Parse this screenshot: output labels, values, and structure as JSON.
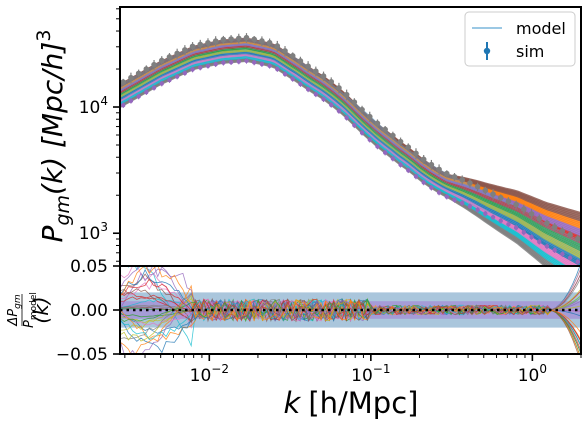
{
  "chart_data": [
    {
      "type": "line",
      "panel": "top",
      "title": "",
      "ylabel_main": "P",
      "ylabel_sub": "gm",
      "ylabel_rest": "(k) [Mpc/h]",
      "ylabel_sup": "3",
      "xscale": "log",
      "yscale": "log",
      "xlim": [
        0.0028,
        2.0
      ],
      "ylim": [
        550,
        62000
      ],
      "yticks": [
        {
          "value": 1000,
          "base": "10",
          "exp": "3"
        },
        {
          "value": 10000,
          "base": "10",
          "exp": "4"
        }
      ],
      "legend": {
        "placement": "top-right",
        "entries": [
          {
            "label": "model",
            "kind": "line",
            "color": "#5fa8d3"
          },
          {
            "label": "sim",
            "kind": "errorbar",
            "color": "#1f77b4"
          }
        ]
      },
      "curve_shape": {
        "k": [
          0.0028,
          0.005,
          0.008,
          0.012,
          0.017,
          0.025,
          0.035,
          0.05,
          0.07,
          0.1,
          0.15,
          0.2,
          0.3,
          0.5,
          0.8,
          1.2,
          2.0
        ],
        "pk": [
          12500,
          19000,
          25000,
          28000,
          29000,
          26000,
          20000,
          14500,
          10300,
          7000,
          4300,
          3300,
          2450,
          1800,
          1380,
          1000,
          720
        ]
      },
      "series_note": "many realizations of sim (points with error bars) and model (thin lines)",
      "series_colors": [
        "#7f7f7f",
        "#17becf",
        "#e377c2",
        "#1f77b4",
        "#bcbd22",
        "#2ca02c",
        "#d62728",
        "#9467bd",
        "#ff7f0e",
        "#8c564b"
      ]
    },
    {
      "type": "line",
      "panel": "bottom",
      "xlabel_main": "k",
      "xlabel_rest": "[h/Mpc]",
      "ylabel_num_main": "ΔP",
      "ylabel_num_sub": "gm",
      "ylabel_den_main": "P",
      "ylabel_den_sub": "model",
      "ylabel_tail": "(k)",
      "xscale": "log",
      "xlim": [
        0.0028,
        2.0
      ],
      "ylim": [
        -0.05,
        0.05
      ],
      "yticks": [
        {
          "value": 0.05,
          "label": "0.05"
        },
        {
          "value": 0.0,
          "label": "0.00"
        },
        {
          "value": -0.05,
          "label": "−0.05"
        }
      ],
      "xticks": [
        {
          "value": 0.01,
          "base": "10",
          "exp": "−2"
        },
        {
          "value": 0.1,
          "base": "10",
          "exp": "−1"
        },
        {
          "value": 1,
          "base": "10",
          "exp": "0"
        }
      ],
      "bands": [
        {
          "ymin": -0.02,
          "ymax": 0.02,
          "color": "#9bbcd6"
        },
        {
          "ymin": -0.01,
          "ymax": 0.01,
          "color": "#a594d6"
        }
      ],
      "zero_line": {
        "y": 0.0,
        "style": "dotted",
        "color": "#000000"
      }
    }
  ]
}
